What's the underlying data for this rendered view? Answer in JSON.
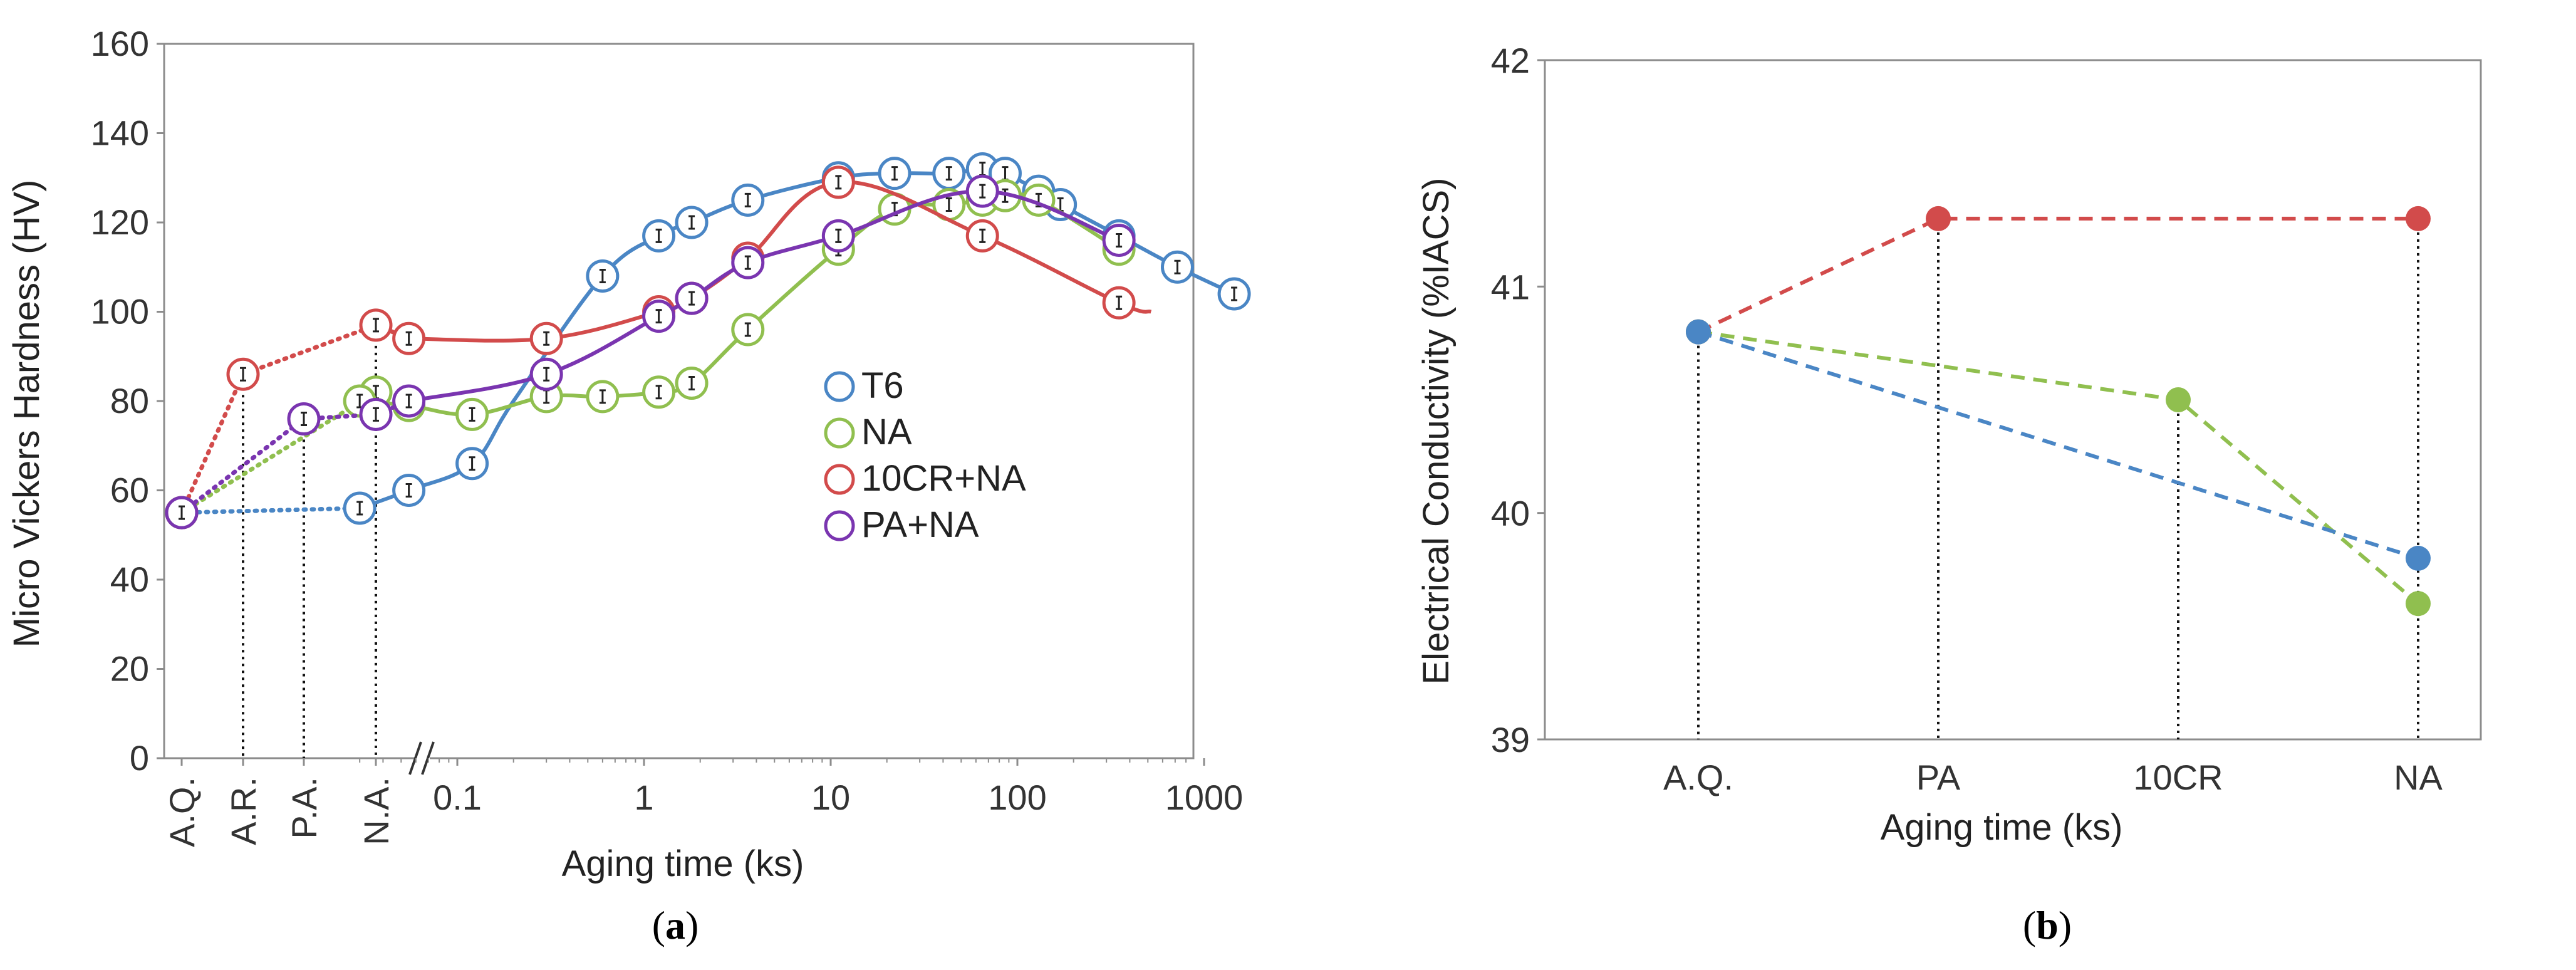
{
  "chart_data": [
    {
      "type": "scatter",
      "panel": "a",
      "xlabel": "Aging time  (ks)",
      "ylabel": "Micro Vickers Hardness (HV)",
      "ylim": [
        0,
        160
      ],
      "yticks": [
        "0",
        "20",
        "40",
        "60",
        "80",
        "100",
        "120",
        "140",
        "160"
      ],
      "categorical_ticks": [
        "A.Q.",
        "A.R.",
        "P.A.",
        "N.A."
      ],
      "log_ticks": [
        {
          "value": 0.1,
          "label": "0.1"
        },
        {
          "value": 1,
          "label": "1"
        },
        {
          "value": 10,
          "label": "10"
        },
        {
          "value": 100,
          "label": "100"
        },
        {
          "value": 1000,
          "label": "1000"
        }
      ],
      "legend_position": "center-right",
      "series": [
        {
          "name": "T6",
          "color": "#4a86c5",
          "pre_points": [
            {
              "x": "A.Q.",
              "y": 55
            }
          ],
          "points": [
            [
              0.03,
              56
            ],
            [
              0.055,
              60
            ],
            [
              0.12,
              66
            ],
            [
              0.6,
              108
            ],
            [
              1.2,
              117
            ],
            [
              1.8,
              120
            ],
            [
              3.6,
              125
            ],
            [
              11,
              130
            ],
            [
              22,
              131
            ],
            [
              43,
              131
            ],
            [
              65,
              132
            ],
            [
              86,
              131
            ],
            [
              130,
              127
            ],
            [
              170,
              124
            ],
            [
              350,
              117
            ],
            [
              720,
              110
            ],
            [
              1450,
              104
            ]
          ]
        },
        {
          "name": "NA",
          "color": "#90bf4f",
          "pre_points": [
            {
              "x": "A.Q.",
              "y": 55
            },
            {
              "x": "N.A.",
              "y": 82
            }
          ],
          "points": [
            [
              0.03,
              80
            ],
            [
              0.055,
              79
            ],
            [
              0.12,
              77
            ],
            [
              0.3,
              81
            ],
            [
              0.6,
              81
            ],
            [
              1.2,
              82
            ],
            [
              1.8,
              84
            ],
            [
              3.6,
              96
            ],
            [
              11,
              114
            ],
            [
              22,
              123
            ],
            [
              43,
              124
            ],
            [
              65,
              125
            ],
            [
              86,
              126
            ],
            [
              130,
              125
            ],
            [
              350,
              114
            ]
          ]
        },
        {
          "name": "10CR+NA",
          "color": "#d24b4b",
          "pre_points": [
            {
              "x": "A.Q.",
              "y": 55
            },
            {
              "x": "A.R.",
              "y": 86
            },
            {
              "x": "N.A.",
              "y": 97
            }
          ],
          "points": [
            [
              0.055,
              94
            ],
            [
              0.3,
              94
            ],
            [
              1.2,
              100
            ],
            [
              1.8,
              103
            ],
            [
              3.6,
              112
            ],
            [
              11,
              129
            ],
            [
              65,
              117
            ],
            [
              350,
              102
            ]
          ]
        },
        {
          "name": "PA+NA",
          "color": "#7a35b0",
          "pre_points": [
            {
              "x": "A.Q.",
              "y": 55
            },
            {
              "x": "P.A.",
              "y": 76
            },
            {
              "x": "N.A.",
              "y": 77
            }
          ],
          "points": [
            [
              0.055,
              80
            ],
            [
              0.3,
              86
            ],
            [
              1.2,
              99
            ],
            [
              1.8,
              103
            ],
            [
              3.6,
              111
            ],
            [
              11,
              117
            ],
            [
              65,
              127
            ],
            [
              350,
              116
            ]
          ]
        }
      ],
      "caption": "a"
    },
    {
      "type": "line",
      "panel": "b",
      "xlabel": "Aging time  (ks)",
      "ylabel": "Electrical Conductivity (%IACS)",
      "ylim": [
        39,
        42
      ],
      "yticks": [
        "39",
        "40",
        "41",
        "42"
      ],
      "categories": [
        "A.Q.",
        "PA",
        "10CR",
        "NA"
      ],
      "series": [
        {
          "name": "red",
          "color": "#d24b4b",
          "points": [
            {
              "x": "A.Q.",
              "y": 40.8
            },
            {
              "x": "PA",
              "y": 41.3
            },
            {
              "x": "NA",
              "y": 41.3
            }
          ]
        },
        {
          "name": "green",
          "color": "#90bf4f",
          "points": [
            {
              "x": "A.Q.",
              "y": 40.8
            },
            {
              "x": "10CR",
              "y": 40.5
            },
            {
              "x": "NA",
              "y": 39.6
            }
          ]
        },
        {
          "name": "blue",
          "color": "#4a86c5",
          "points": [
            {
              "x": "A.Q.",
              "y": 40.8
            },
            {
              "x": "NA",
              "y": 39.8
            }
          ]
        }
      ],
      "caption": "b"
    }
  ]
}
